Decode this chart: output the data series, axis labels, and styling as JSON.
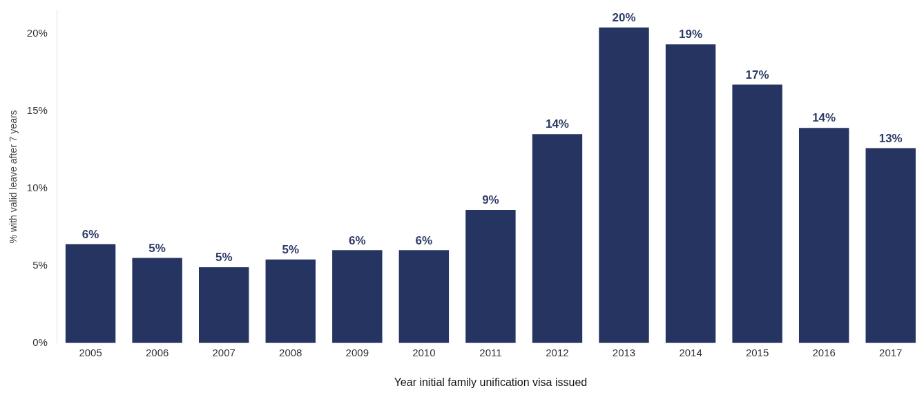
{
  "chart_data": {
    "type": "bar",
    "xlabel": "Year initial family unification visa issued",
    "ylabel": "% with valid leave after 7 years",
    "categories": [
      "2005",
      "2006",
      "2007",
      "2008",
      "2009",
      "2010",
      "2011",
      "2012",
      "2013",
      "2014",
      "2015",
      "2016",
      "2017"
    ],
    "values": [
      6.4,
      5.5,
      4.9,
      5.4,
      6.0,
      6.0,
      8.6,
      13.5,
      20.4,
      19.3,
      16.7,
      13.9,
      12.6
    ],
    "value_labels": [
      "6%",
      "5%",
      "5%",
      "5%",
      "6%",
      "6%",
      "9%",
      "14%",
      "20%",
      "19%",
      "17%",
      "14%",
      "13%"
    ],
    "color": "#253461",
    "ylim": [
      0,
      21.5
    ],
    "yticks": [
      {
        "value": 0,
        "label": "0%"
      },
      {
        "value": 5,
        "label": "5%"
      },
      {
        "value": 10,
        "label": "10%"
      },
      {
        "value": 15,
        "label": "15%"
      },
      {
        "value": 20,
        "label": "20%"
      }
    ],
    "grid": false,
    "legend": false
  }
}
